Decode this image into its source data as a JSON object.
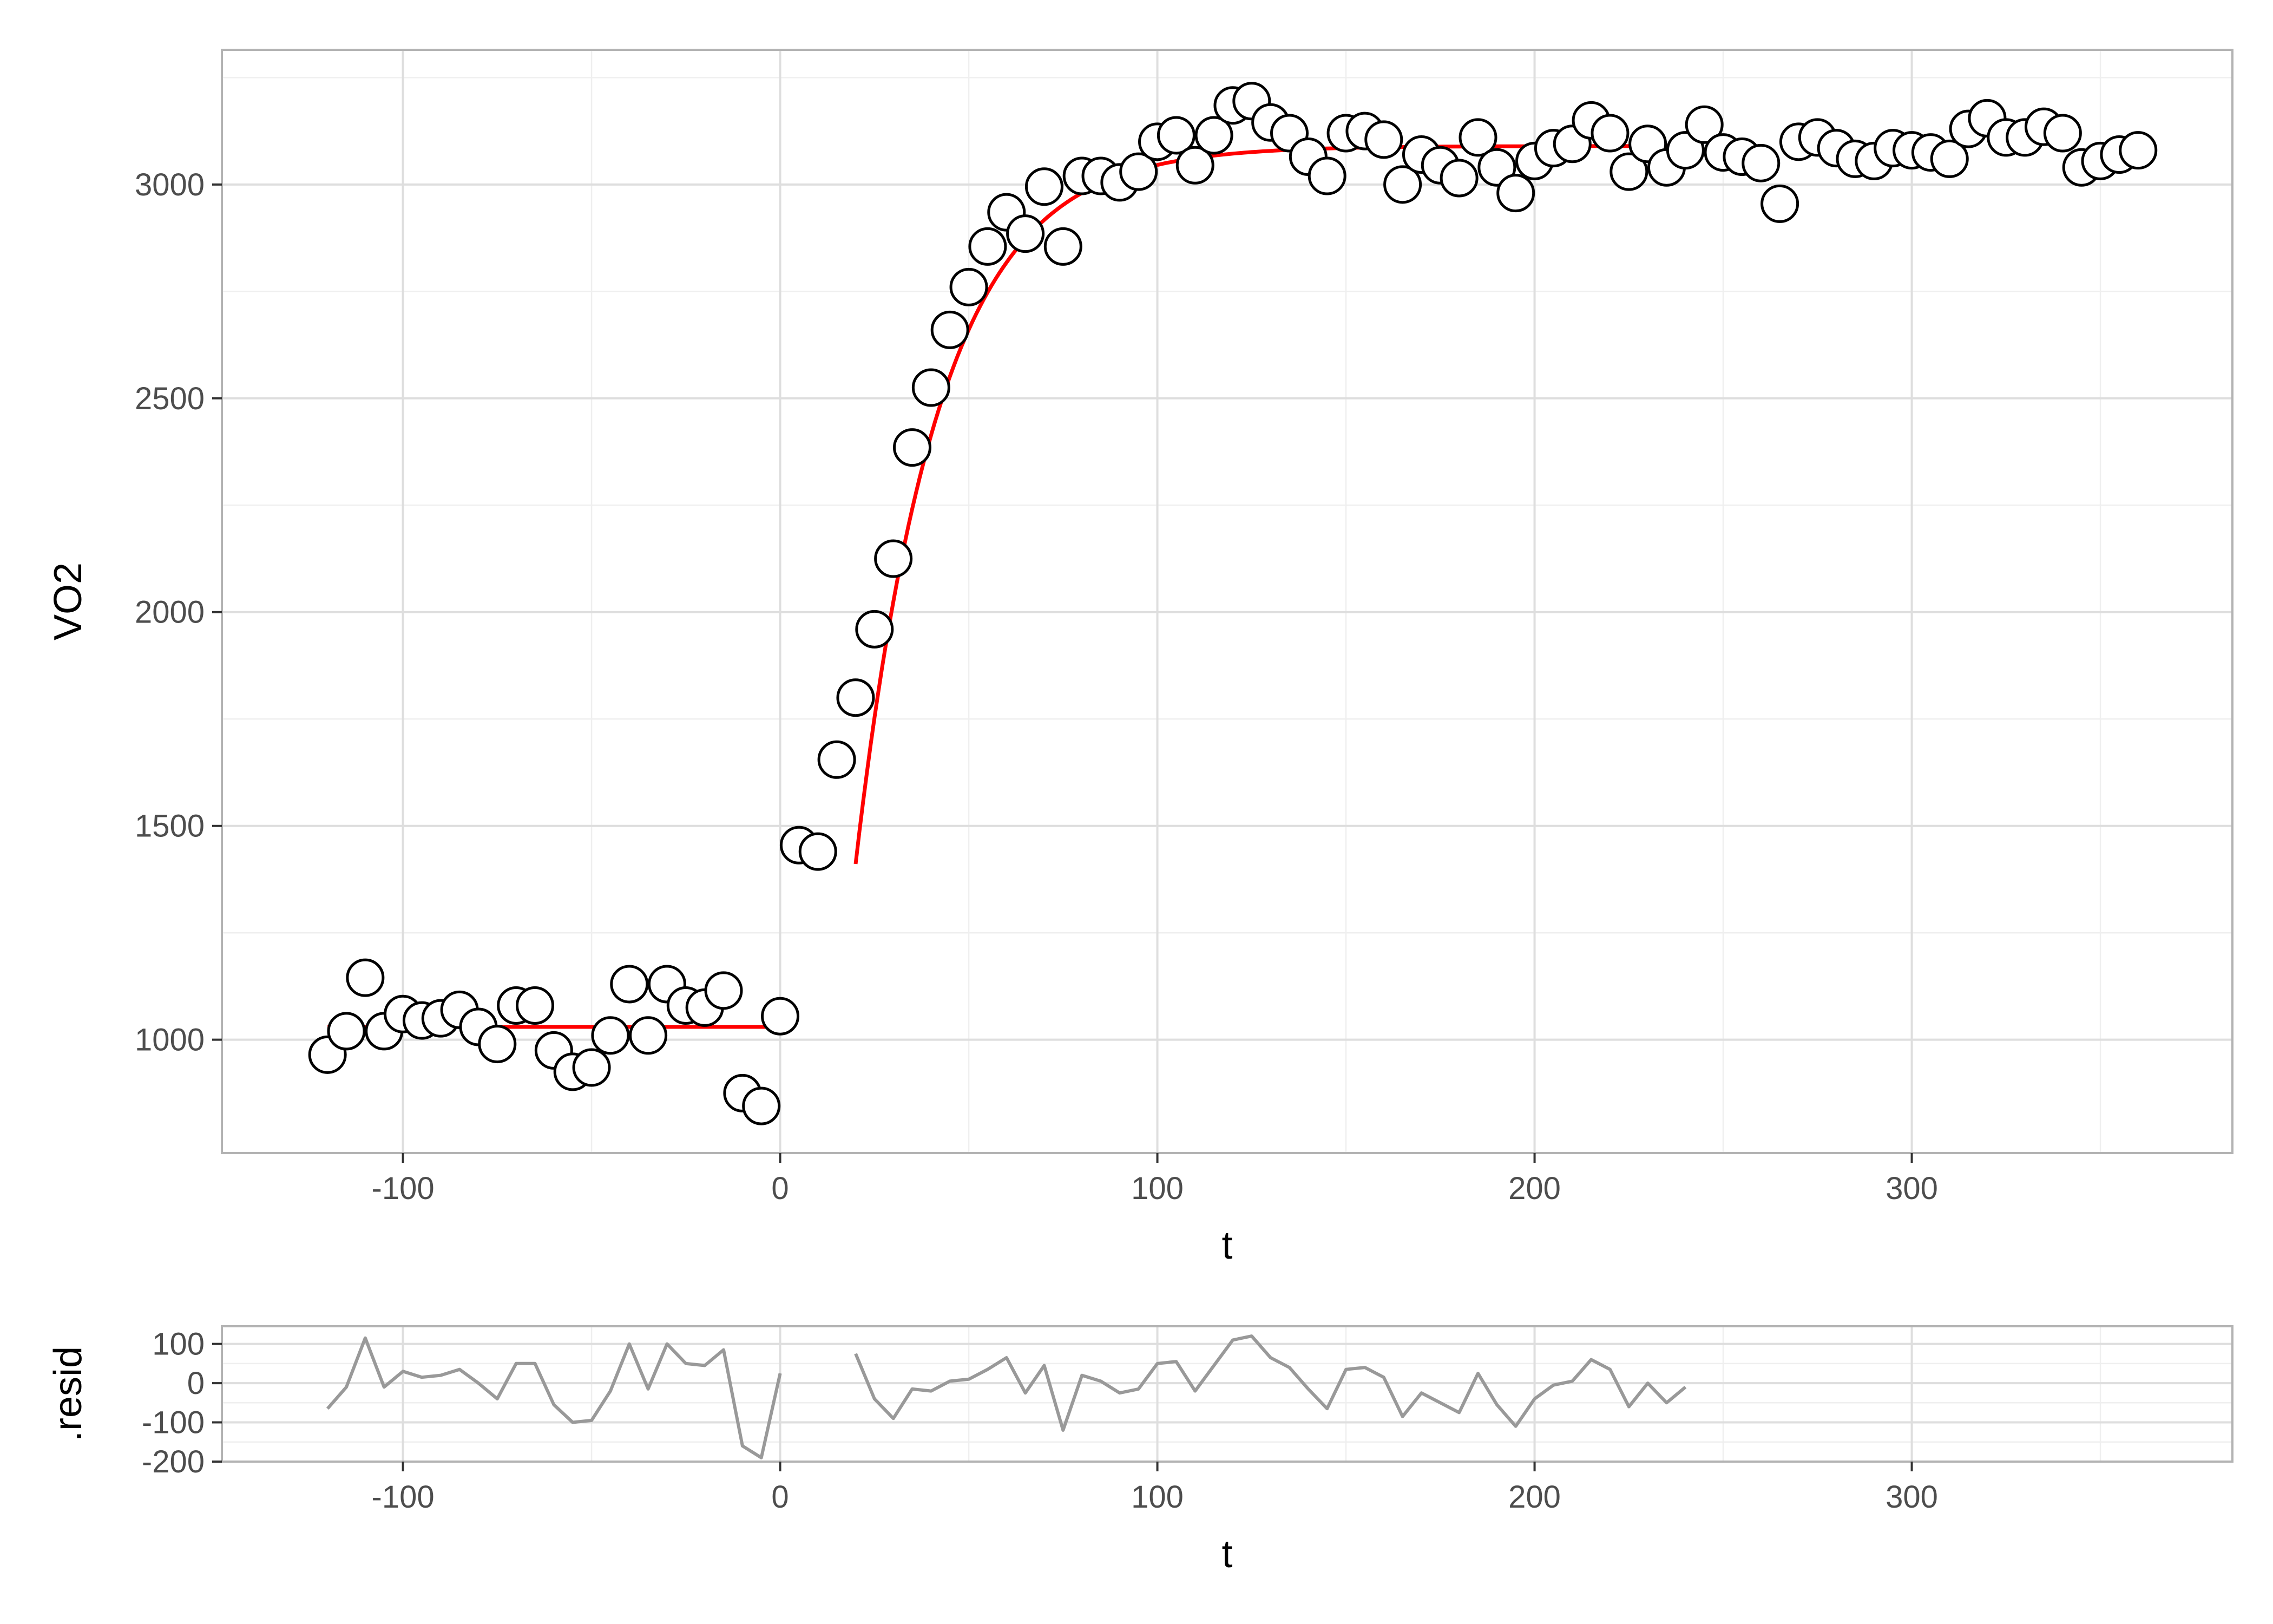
{
  "chart_data": [
    {
      "id": "main",
      "type": "scatter",
      "xlabel": "t",
      "ylabel": "VO2",
      "xlim": [
        -148,
        385
      ],
      "ylim": [
        735,
        3315
      ],
      "x_ticks": [
        -100,
        0,
        100,
        200,
        300
      ],
      "y_ticks": [
        1000,
        1500,
        2000,
        2500,
        3000
      ],
      "grid": true,
      "colors": {
        "points_fill": "#ffffff",
        "points_stroke": "#000000",
        "fit": "#ff0000"
      },
      "points": {
        "x": [
          -120,
          -115,
          -110,
          -105,
          -100,
          -95,
          -90,
          -85,
          -80,
          -75,
          -70,
          -65,
          -60,
          -55,
          -50,
          -45,
          -40,
          -35,
          -30,
          -25,
          -20,
          -15,
          -10,
          -5,
          0,
          5,
          10,
          15,
          20,
          25,
          30,
          35,
          40,
          45,
          50,
          55,
          60,
          65,
          70,
          75,
          80,
          85,
          90,
          95,
          100,
          105,
          110,
          115,
          120,
          125,
          130,
          135,
          140,
          145,
          150,
          155,
          160,
          165,
          170,
          175,
          180,
          185,
          190,
          195,
          200,
          205,
          210,
          215,
          220,
          225,
          230,
          235,
          240,
          245,
          250,
          255,
          260,
          265,
          270,
          275,
          280,
          285,
          290,
          295,
          300,
          305,
          310,
          315,
          320,
          325,
          330,
          335,
          340,
          345,
          350,
          355,
          360
        ],
        "y": [
          965,
          1020,
          1145,
          1020,
          1060,
          1045,
          1050,
          1070,
          1030,
          990,
          1080,
          1080,
          975,
          925,
          935,
          1010,
          1130,
          1010,
          1130,
          1080,
          1075,
          1115,
          875,
          845,
          1055,
          1455,
          1440,
          1655,
          1800,
          1960,
          2125,
          2385,
          2525,
          2660,
          2760,
          2855,
          2935,
          2885,
          2995,
          2855,
          3020,
          3020,
          3005,
          3030,
          3100,
          3115,
          3045,
          3115,
          3185,
          3195,
          3145,
          3120,
          3065,
          3020,
          3120,
          3125,
          3105,
          3000,
          3070,
          3045,
          3015,
          3110,
          3040,
          2980,
          3055,
          3085,
          3095,
          3150,
          3120,
          3030,
          3095,
          3040,
          3080,
          3140,
          3075,
          3065,
          3050,
          2955,
          3100,
          3110,
          3085,
          3060,
          3055,
          3085,
          3080,
          3075,
          3060,
          3130,
          3155,
          3110,
          3110,
          3135,
          3120,
          3040,
          3055,
          3070,
          3080
        ]
      },
      "fits": [
        {
          "kind": "baseline",
          "x": [
            -120,
            0
          ],
          "y": [
            1030,
            1030
          ]
        },
        {
          "kind": "exponential",
          "x0": 20,
          "x1": 240,
          "baseline": 1030,
          "amplitude": 2060,
          "delay": 15.5,
          "tau": 22
        }
      ]
    },
    {
      "id": "residuals",
      "type": "line",
      "xlabel": "t",
      "ylabel": ".resid",
      "xlim": [
        -148,
        385
      ],
      "ylim": [
        -200,
        145
      ],
      "x_ticks": [
        -100,
        0,
        100,
        200,
        300
      ],
      "y_ticks": [
        -200,
        -100,
        0,
        100
      ],
      "y_tick_labels": [
        "-200",
        "-100",
        "0",
        "100"
      ],
      "grid": true,
      "colors": {
        "line": "#999999"
      },
      "segments": [
        {
          "x": [
            -120,
            -115,
            -110,
            -105,
            -100,
            -95,
            -90,
            -85,
            -80,
            -75,
            -70,
            -65,
            -60,
            -55,
            -50,
            -45,
            -40,
            -35,
            -30,
            -25,
            -20,
            -15,
            -10,
            -5,
            0
          ],
          "y": [
            -65,
            -10,
            115,
            -10,
            30,
            15,
            20,
            35,
            0,
            -40,
            50,
            50,
            -55,
            -100,
            -95,
            -20,
            100,
            -15,
            100,
            50,
            45,
            85,
            -160,
            -190,
            25
          ]
        },
        {
          "x": [
            20,
            25,
            30,
            35,
            40,
            45,
            50,
            55,
            60,
            65,
            70,
            75,
            80,
            85,
            90,
            95,
            100,
            105,
            110,
            115,
            120,
            125,
            130,
            135,
            140,
            145,
            150,
            155,
            160,
            165,
            170,
            175,
            180,
            185,
            190,
            195,
            200,
            205,
            210,
            215,
            220,
            225,
            230,
            235,
            240
          ],
          "y": [
            75,
            -40,
            -90,
            -15,
            -20,
            5,
            10,
            35,
            65,
            -25,
            45,
            -120,
            20,
            5,
            -25,
            -15,
            50,
            55,
            -20,
            45,
            110,
            120,
            65,
            40,
            -15,
            -65,
            35,
            40,
            15,
            -85,
            -25,
            -50,
            -75,
            25,
            -55,
            -110,
            -40,
            -5,
            5,
            60,
            35,
            -60,
            0,
            -50,
            -10
          ]
        }
      ]
    }
  ]
}
